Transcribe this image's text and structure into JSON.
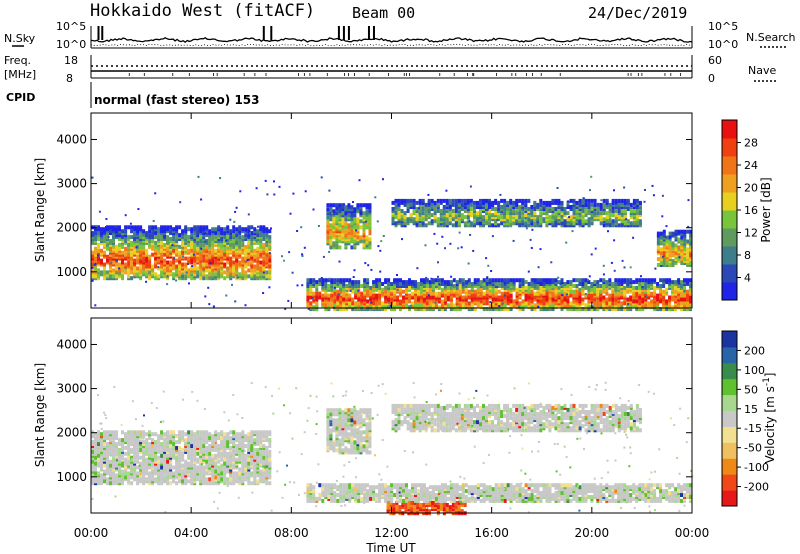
{
  "header": {
    "radar": "Hokkaido West (fitACF)",
    "beam": "Beam 00",
    "date": "24/Dec/2019"
  },
  "top_panels": {
    "nsky_label": "N.Sky",
    "nsearch_label": "N.Search",
    "noise_ticks_left": [
      "10^5",
      "10^0"
    ],
    "noise_ticks_right": [
      "10^5",
      "10^0"
    ],
    "freq_label": "Freq.",
    "freq_unit": "[MHz]",
    "freq_ticks": [
      "18",
      "8"
    ],
    "nave_label": "Nave",
    "nave_ticks": [
      "60",
      "0"
    ],
    "cpid_label": "CPID",
    "cpid_text": "normal (fast stereo) 153"
  },
  "x_axis": {
    "label": "Time UT",
    "ticks": [
      "00:00",
      "04:00",
      "08:00",
      "12:00",
      "16:00",
      "20:00",
      "00:00"
    ]
  },
  "chart_data": [
    {
      "type": "heatmap",
      "panel": "power",
      "ylabel": "Slant Range [km]",
      "x_range_hours": [
        0,
        24
      ],
      "ylim": [
        180,
        4600
      ],
      "y_ticks": [
        "1000",
        "2000",
        "3000",
        "4000"
      ],
      "colorbar": {
        "label": "Power [dB]",
        "ticks": [
          "4",
          "8",
          "12",
          "16",
          "20",
          "24",
          "28"
        ],
        "colors": [
          "#1f24e6",
          "#2a48b8",
          "#3e7e8c",
          "#5f9a5e",
          "#77c53a",
          "#e8d020",
          "#f0a020",
          "#f07418",
          "#f04010",
          "#e81010"
        ]
      },
      "echo_regions": [
        {
          "t_start": 0.0,
          "t_end": 7.2,
          "r_low": 900,
          "r_high": 2100,
          "peak_db": 26
        },
        {
          "t_start": 9.4,
          "t_end": 11.2,
          "r_low": 1600,
          "r_high": 2600,
          "peak_db": 22
        },
        {
          "t_start": 12.0,
          "t_end": 22.0,
          "r_low": 2100,
          "r_high": 2700,
          "peak_db": 14
        },
        {
          "t_start": 8.6,
          "t_end": 24.0,
          "r_low": 200,
          "r_high": 900,
          "peak_db": 28
        },
        {
          "t_start": 22.6,
          "t_end": 24.0,
          "r_low": 1200,
          "r_high": 2000,
          "peak_db": 22
        }
      ]
    },
    {
      "type": "heatmap",
      "panel": "velocity",
      "ylabel": "Slant Range [km]",
      "x_range_hours": [
        0,
        24
      ],
      "ylim": [
        180,
        4600
      ],
      "y_ticks": [
        "1000",
        "2000",
        "3000",
        "4000"
      ],
      "colorbar": {
        "label": "Velocity [m s^-1]",
        "ticks": [
          "200",
          "100",
          "50",
          "15",
          "-15",
          "-50",
          "-100",
          "-200"
        ],
        "colors": [
          "#1c34a0",
          "#2a64a8",
          "#3a8c4a",
          "#5fc030",
          "#a8d890",
          "#c8c8c8",
          "#f0e090",
          "#f0c060",
          "#f08818",
          "#f04818",
          "#e81818"
        ]
      },
      "echo_regions": [
        {
          "t_start": 0.0,
          "t_end": 7.2,
          "r_low": 900,
          "r_high": 2100,
          "typical_velocity": 0
        },
        {
          "t_start": 9.4,
          "t_end": 11.2,
          "r_low": 1600,
          "r_high": 2600,
          "typical_velocity": 0
        },
        {
          "t_start": 12.0,
          "t_end": 22.0,
          "r_low": 2100,
          "r_high": 2700,
          "typical_velocity": 0
        },
        {
          "t_start": 11.8,
          "t_end": 15.0,
          "r_low": 220,
          "r_high": 500,
          "typical_velocity": -120
        },
        {
          "t_start": 8.6,
          "t_end": 24.0,
          "r_low": 500,
          "r_high": 900,
          "typical_velocity": 0
        }
      ]
    }
  ]
}
